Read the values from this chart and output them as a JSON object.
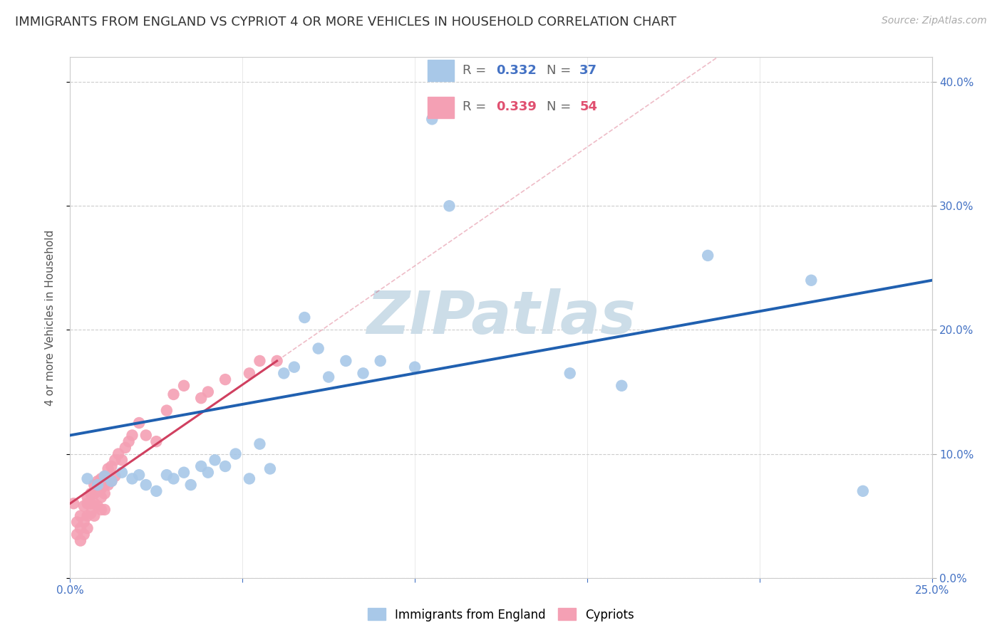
{
  "title": "IMMIGRANTS FROM ENGLAND VS CYPRIOT 4 OR MORE VEHICLES IN HOUSEHOLD CORRELATION CHART",
  "source": "Source: ZipAtlas.com",
  "ylabel": "4 or more Vehicles in Household",
  "watermark": "ZIPatlas",
  "xlim": [
    0.0,
    0.25
  ],
  "ylim": [
    0.0,
    0.42
  ],
  "xticks": [
    0.0,
    0.05,
    0.1,
    0.15,
    0.2,
    0.25
  ],
  "yticks": [
    0.0,
    0.1,
    0.2,
    0.3,
    0.4
  ],
  "xtick_labels": [
    "0.0%",
    "",
    "",
    "",
    "",
    "25.0%"
  ],
  "ytick_labels_right": [
    "0.0%",
    "10.0%",
    "20.0%",
    "30.0%",
    "40.0%"
  ],
  "legend_R1": "0.332",
  "legend_N1": "37",
  "legend_R2": "0.339",
  "legend_N2": "54",
  "legend_label1": "Immigrants from England",
  "legend_label2": "Cypriots",
  "england_scatter_x": [
    0.005,
    0.008,
    0.01,
    0.012,
    0.015,
    0.018,
    0.02,
    0.022,
    0.025,
    0.028,
    0.03,
    0.033,
    0.035,
    0.038,
    0.04,
    0.042,
    0.045,
    0.048,
    0.052,
    0.055,
    0.058,
    0.062,
    0.065,
    0.068,
    0.072,
    0.075,
    0.08,
    0.085,
    0.09,
    0.1,
    0.105,
    0.11,
    0.145,
    0.16,
    0.185,
    0.215,
    0.23
  ],
  "england_scatter_y": [
    0.08,
    0.075,
    0.082,
    0.078,
    0.085,
    0.08,
    0.083,
    0.075,
    0.07,
    0.083,
    0.08,
    0.085,
    0.075,
    0.09,
    0.085,
    0.095,
    0.09,
    0.1,
    0.08,
    0.108,
    0.088,
    0.165,
    0.17,
    0.21,
    0.185,
    0.162,
    0.175,
    0.165,
    0.175,
    0.17,
    0.37,
    0.3,
    0.165,
    0.155,
    0.26,
    0.24,
    0.07
  ],
  "cypriot_scatter_x": [
    0.001,
    0.002,
    0.002,
    0.003,
    0.003,
    0.003,
    0.004,
    0.004,
    0.004,
    0.005,
    0.005,
    0.005,
    0.005,
    0.006,
    0.006,
    0.006,
    0.007,
    0.007,
    0.007,
    0.007,
    0.008,
    0.008,
    0.008,
    0.009,
    0.009,
    0.009,
    0.009,
    0.01,
    0.01,
    0.01,
    0.01,
    0.011,
    0.011,
    0.012,
    0.012,
    0.013,
    0.013,
    0.014,
    0.015,
    0.016,
    0.017,
    0.018,
    0.02,
    0.022,
    0.025,
    0.028,
    0.03,
    0.033,
    0.038,
    0.04,
    0.045,
    0.052,
    0.055,
    0.06
  ],
  "cypriot_scatter_y": [
    0.06,
    0.045,
    0.035,
    0.05,
    0.04,
    0.03,
    0.058,
    0.045,
    0.035,
    0.065,
    0.06,
    0.05,
    0.04,
    0.068,
    0.06,
    0.052,
    0.075,
    0.068,
    0.06,
    0.05,
    0.078,
    0.07,
    0.058,
    0.08,
    0.072,
    0.065,
    0.055,
    0.082,
    0.075,
    0.068,
    0.055,
    0.088,
    0.075,
    0.09,
    0.078,
    0.095,
    0.082,
    0.1,
    0.095,
    0.105,
    0.11,
    0.115,
    0.125,
    0.115,
    0.11,
    0.135,
    0.148,
    0.155,
    0.145,
    0.15,
    0.16,
    0.165,
    0.175,
    0.175
  ],
  "england_line_x": [
    0.0,
    0.25
  ],
  "england_line_y": [
    0.115,
    0.24
  ],
  "cypriot_line_x": [
    0.0,
    0.06
  ],
  "cypriot_line_y": [
    0.06,
    0.175
  ],
  "cypriot_ext_line_x": [
    0.0,
    0.25
  ],
  "cypriot_ext_slope": 1.917,
  "cypriot_ext_intercept": 0.06,
  "england_line_color": "#2060b0",
  "cypriot_line_color": "#d04060",
  "england_dot_color": "#a8c8e8",
  "cypriot_dot_color": "#f4a0b4",
  "grid_color": "#cccccc",
  "background_color": "#ffffff",
  "title_fontsize": 13,
  "source_fontsize": 10,
  "ylabel_fontsize": 11,
  "tick_fontsize": 11,
  "watermark_color": "#ccdde8",
  "watermark_fontsize": 60
}
